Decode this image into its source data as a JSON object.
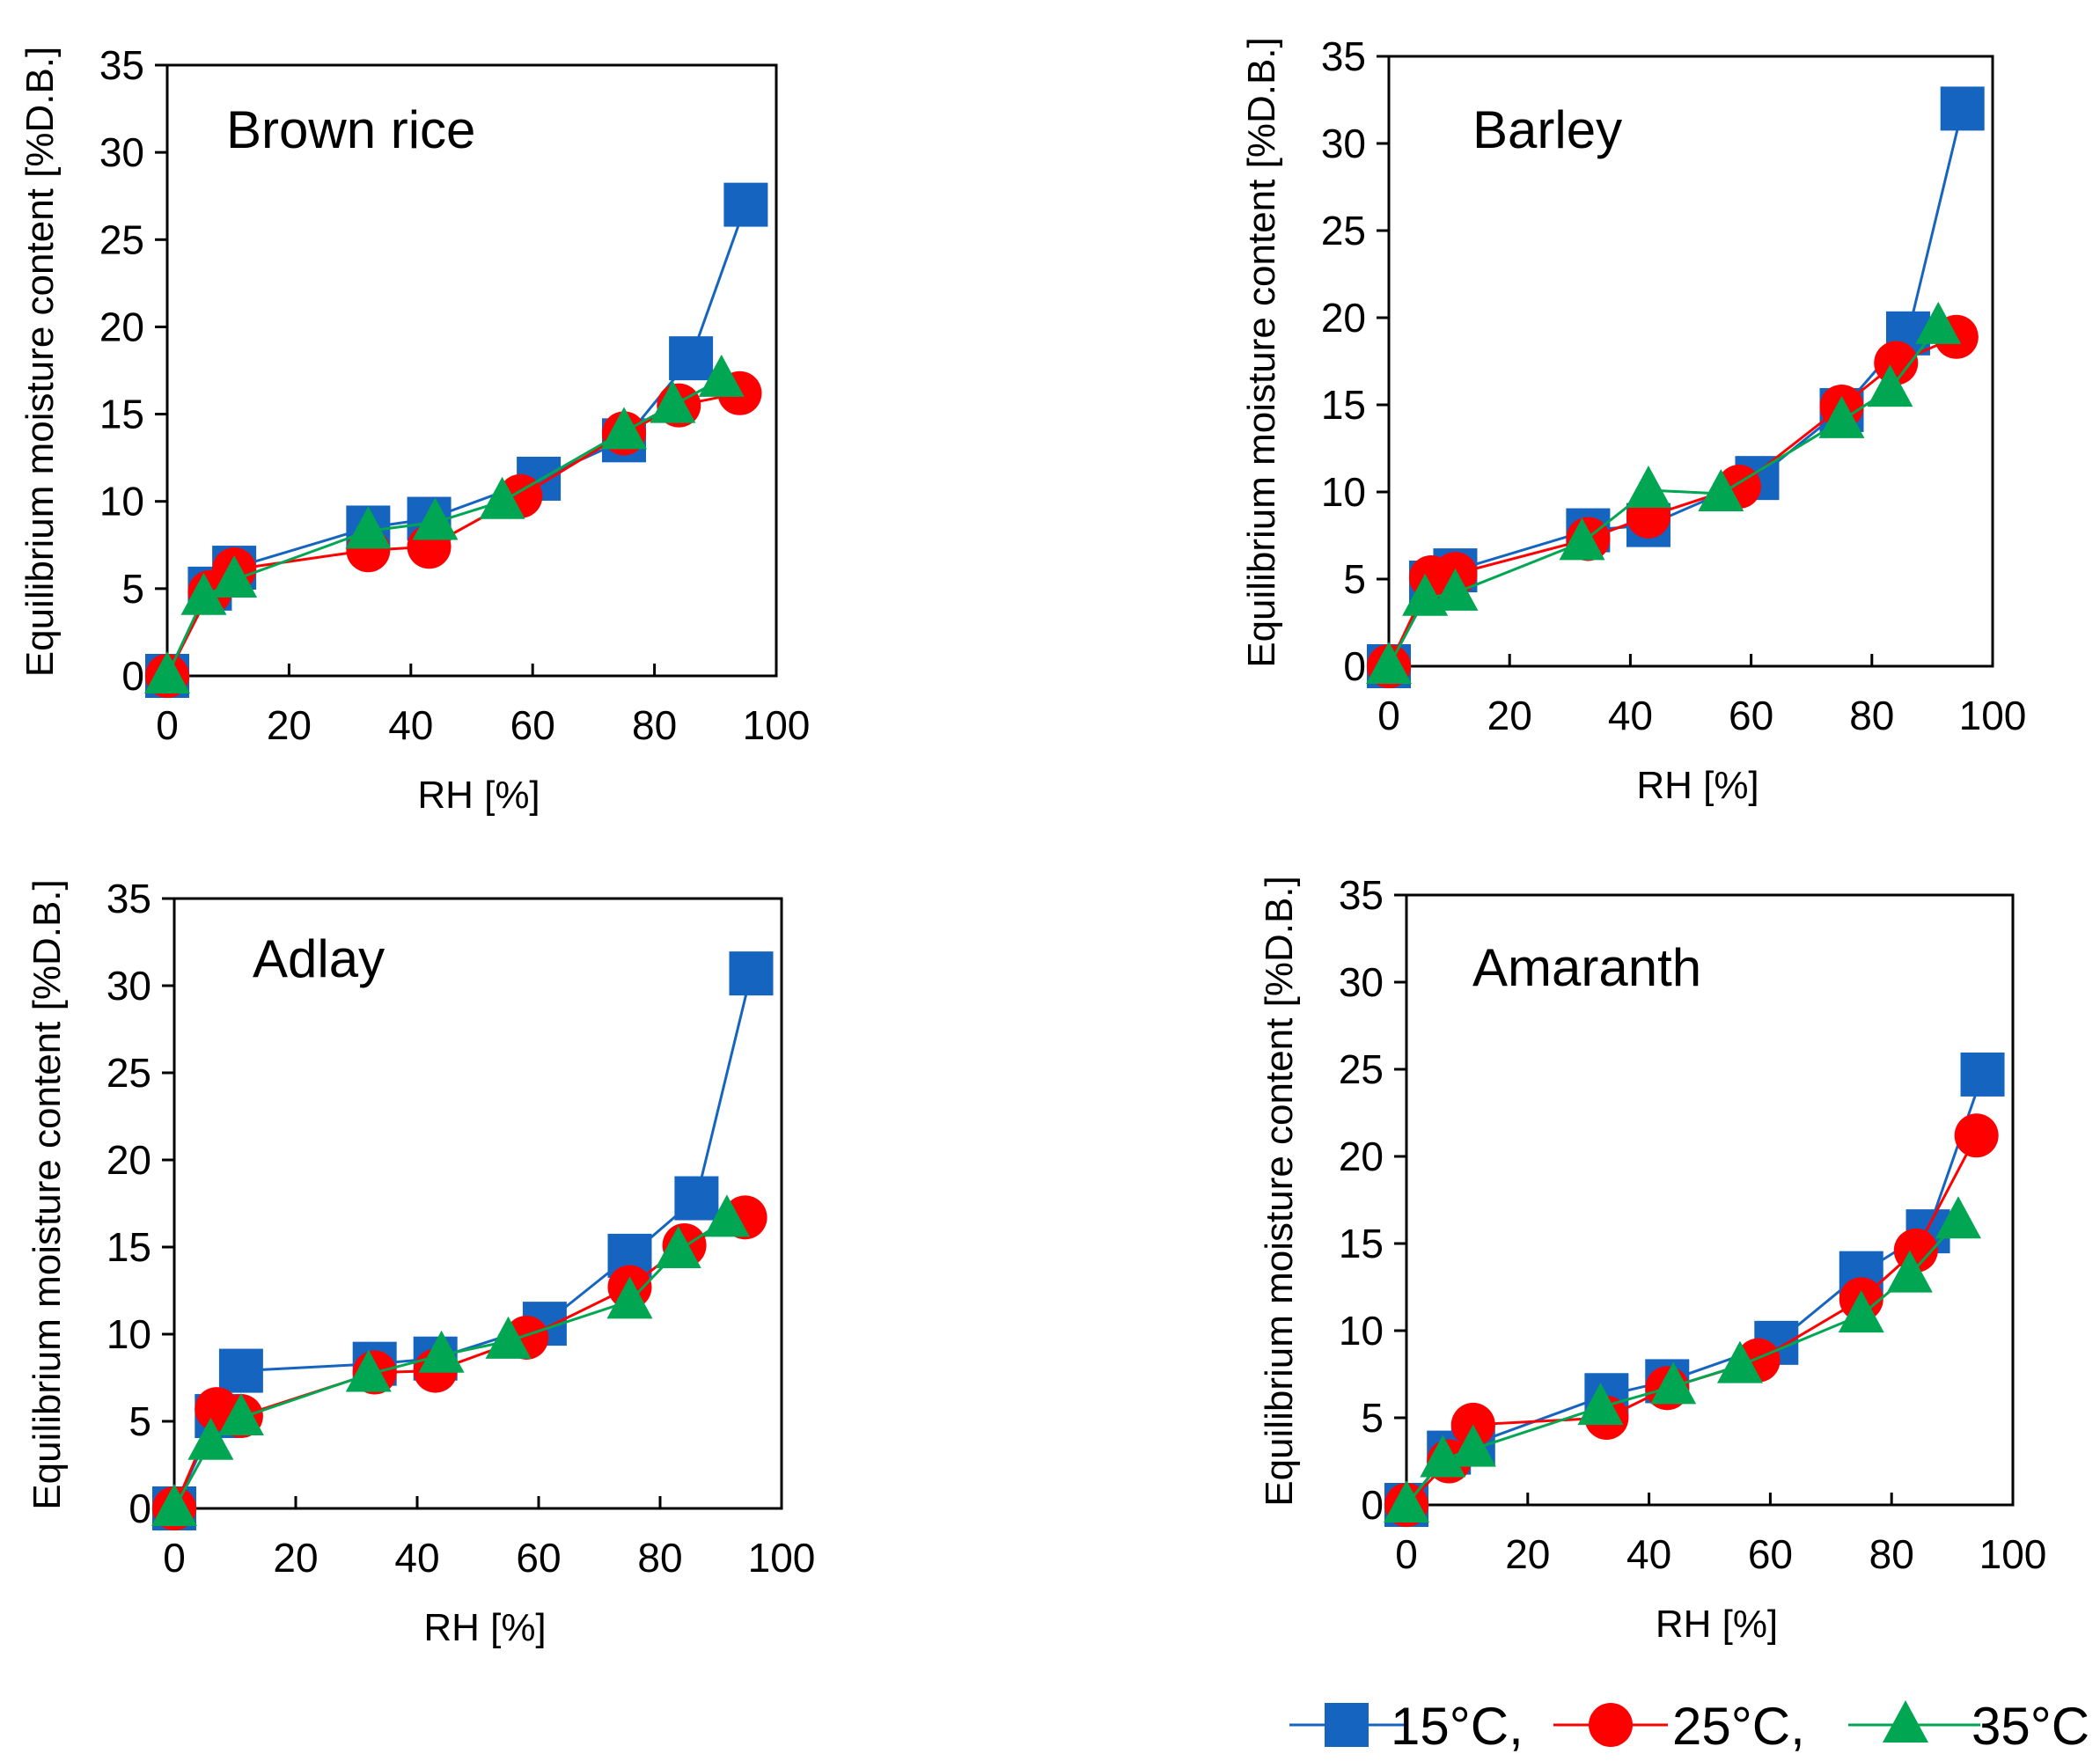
{
  "chart_data": [
    {
      "type": "line",
      "title": "Brown rice",
      "xlabel": "RH [%]",
      "ylabel": "Equilibrium moisture content [%D.B.]",
      "xlim": [
        0,
        100
      ],
      "ylim": [
        0,
        35
      ],
      "xticks": [
        "0",
        "20",
        "40",
        "60",
        "80",
        "100"
      ],
      "yticks": [
        "0",
        "5",
        "10",
        "15",
        "20",
        "25",
        "30",
        "35"
      ],
      "series": [
        {
          "name": "15°C",
          "x": [
            0,
            7,
            11,
            33,
            43,
            61,
            75,
            86,
            95
          ],
          "y": [
            0,
            5.0,
            6.2,
            8.5,
            9.0,
            11.3,
            13.5,
            18.2,
            27.0
          ]
        },
        {
          "name": "25°C",
          "x": [
            0,
            7,
            11,
            33,
            43,
            58,
            75,
            84,
            94
          ],
          "y": [
            0,
            4.8,
            6.1,
            7.2,
            7.4,
            10.3,
            13.9,
            15.5,
            16.2
          ]
        },
        {
          "name": "35°C",
          "x": [
            0,
            6,
            11,
            33,
            44,
            55,
            75,
            83,
            91
          ],
          "y": [
            0,
            4.5,
            5.5,
            8.3,
            8.8,
            10.0,
            14.0,
            15.5,
            17.0
          ]
        }
      ]
    },
    {
      "type": "line",
      "title": "Barley",
      "xlabel": "RH [%]",
      "ylabel": "Equilibrium moisture content [%D.B.]",
      "xlim": [
        0,
        100
      ],
      "ylim": [
        0,
        35
      ],
      "xticks": [
        "0",
        "20",
        "40",
        "60",
        "80",
        "100"
      ],
      "yticks": [
        "0",
        "5",
        "10",
        "15",
        "20",
        "25",
        "30",
        "35"
      ],
      "series": [
        {
          "name": "15°C",
          "x": [
            0,
            7,
            11,
            33,
            43,
            61,
            75,
            86,
            95
          ],
          "y": [
            0,
            4.8,
            5.5,
            7.8,
            8.1,
            10.8,
            14.7,
            19.1,
            32.0
          ]
        },
        {
          "name": "25°C",
          "x": [
            0,
            7,
            11,
            33,
            43,
            58,
            75,
            84,
            94
          ],
          "y": [
            0,
            5.1,
            5.3,
            7.3,
            8.6,
            10.3,
            14.9,
            17.4,
            18.9
          ]
        },
        {
          "name": "35°C",
          "x": [
            0,
            6,
            11,
            32,
            43,
            55,
            75,
            83,
            91
          ],
          "y": [
            0,
            3.9,
            4.2,
            7.1,
            10.1,
            9.9,
            14.1,
            15.9,
            19.5
          ]
        }
      ]
    },
    {
      "type": "line",
      "title": "Adlay",
      "xlabel": "RH [%]",
      "ylabel": "Equilibrium moisture content [%D.B.]",
      "xlim": [
        0,
        100
      ],
      "ylim": [
        0,
        35
      ],
      "xticks": [
        "0",
        "20",
        "40",
        "60",
        "80",
        "100"
      ],
      "yticks": [
        "0",
        "5",
        "10",
        "15",
        "20",
        "25",
        "30",
        "35"
      ],
      "series": [
        {
          "name": "15°C",
          "x": [
            0,
            7,
            11,
            33,
            43,
            61,
            75,
            86,
            95
          ],
          "y": [
            0,
            5.3,
            7.9,
            8.3,
            8.6,
            10.6,
            14.5,
            17.8,
            30.7
          ]
        },
        {
          "name": "25°C",
          "x": [
            0,
            7,
            11,
            33,
            43,
            58,
            75,
            84,
            94
          ],
          "y": [
            0,
            5.7,
            5.3,
            7.8,
            7.9,
            9.8,
            12.7,
            15.1,
            16.7
          ]
        },
        {
          "name": "35°C",
          "x": [
            0,
            6,
            11,
            32,
            44,
            55,
            75,
            83,
            91
          ],
          "y": [
            0,
            3.8,
            5.2,
            7.7,
            8.8,
            9.6,
            11.9,
            14.8,
            16.6
          ]
        }
      ]
    },
    {
      "type": "line",
      "title": "Amaranth",
      "xlabel": "RH [%]",
      "ylabel": "Equilibrium moisture content [%D.B.]",
      "xlim": [
        0,
        100
      ],
      "ylim": [
        0,
        35
      ],
      "xticks": [
        "0",
        "20",
        "40",
        "60",
        "80",
        "100"
      ],
      "yticks": [
        "0",
        "5",
        "10",
        "15",
        "20",
        "25",
        "30",
        "35"
      ],
      "series": [
        {
          "name": "15°C",
          "x": [
            0,
            7,
            11,
            33,
            43,
            61,
            75,
            86,
            95
          ],
          "y": [
            0,
            3.0,
            3.5,
            6.3,
            7.1,
            9.3,
            13.3,
            15.7,
            24.7
          ]
        },
        {
          "name": "25°C",
          "x": [
            0,
            7,
            11,
            33,
            43,
            58,
            75,
            84,
            94
          ],
          "y": [
            0,
            2.5,
            4.6,
            5.0,
            6.7,
            8.3,
            11.8,
            14.6,
            21.2
          ]
        },
        {
          "name": "35°C",
          "x": [
            0,
            6,
            11,
            32,
            44,
            55,
            75,
            83,
            91
          ],
          "y": [
            0,
            2.6,
            3.2,
            5.6,
            6.8,
            8.0,
            10.9,
            13.2,
            16.3
          ]
        }
      ]
    }
  ],
  "legend": [
    {
      "label": "15°C,",
      "marker": "square",
      "color": "#1565C0",
      "line_color": "#1565C0"
    },
    {
      "label": "25°C,",
      "marker": "circle",
      "color": "#FF0000",
      "line_color": "#FF0000"
    },
    {
      "label": "35°C",
      "marker": "triangle",
      "color": "#00A651",
      "line_color": "#00A651"
    }
  ],
  "colors": {
    "series_15": "#1565C0",
    "series_25": "#FF0000",
    "series_35": "#00A651",
    "axis": "#000000"
  }
}
